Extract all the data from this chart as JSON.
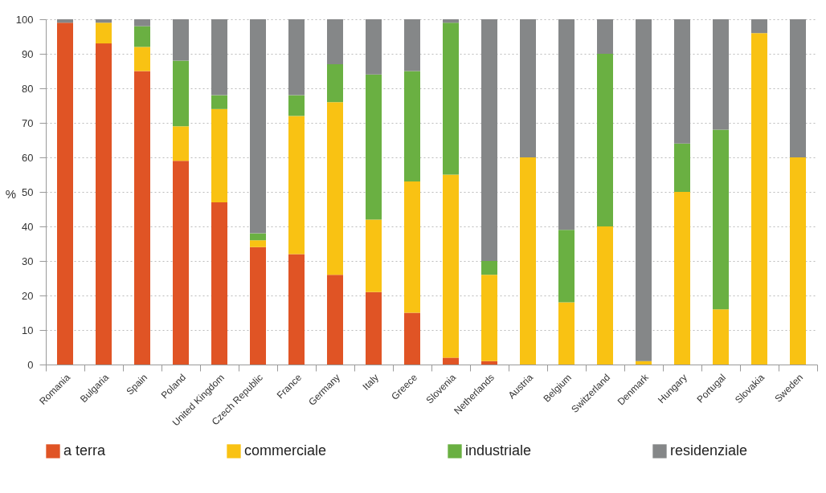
{
  "chart_data": {
    "type": "bar",
    "stacked": true,
    "ylabel": "%",
    "categories": [
      "Romania",
      "Bulgaria",
      "Spain",
      "Poland",
      "United Kingdom",
      "Czech Republic",
      "France",
      "Germany",
      "Italy",
      "Greece",
      "Slovenia",
      "Netherlands",
      "Austria",
      "Belgium",
      "Switzerland",
      "Denmark",
      "Hungary",
      "Portugal",
      "Slovakia",
      "Sweden"
    ],
    "series": [
      {
        "name": "a terra",
        "color": "#e05425",
        "values": [
          99,
          93,
          85,
          59,
          47,
          34,
          32,
          26,
          21,
          15,
          2,
          1,
          null,
          null,
          null,
          null,
          null,
          null,
          null,
          null
        ]
      },
      {
        "name": "commerciale",
        "color": "#f9c213",
        "values": [
          null,
          6,
          7,
          10,
          27,
          2,
          40,
          50,
          21,
          38,
          53,
          25,
          60,
          18,
          40,
          1,
          50,
          16,
          96,
          60
        ]
      },
      {
        "name": "industriale",
        "color": "#6ab042",
        "values": [
          null,
          null,
          6,
          19,
          4,
          2,
          6,
          11,
          42,
          32,
          44,
          4,
          null,
          21,
          50,
          null,
          14,
          52,
          null,
          null
        ]
      },
      {
        "name": "residenziale",
        "color": "#858788",
        "values": [
          1,
          1,
          2,
          12,
          22,
          62,
          22,
          13,
          16,
          15,
          1,
          70,
          40,
          61,
          10,
          99,
          36,
          32,
          4,
          40
        ]
      }
    ],
    "ylim": [
      0,
      100
    ],
    "yticks": [
      0,
      10,
      20,
      30,
      40,
      50,
      60,
      70,
      80,
      90,
      100
    ],
    "grid": "y",
    "legend": "bottom"
  }
}
